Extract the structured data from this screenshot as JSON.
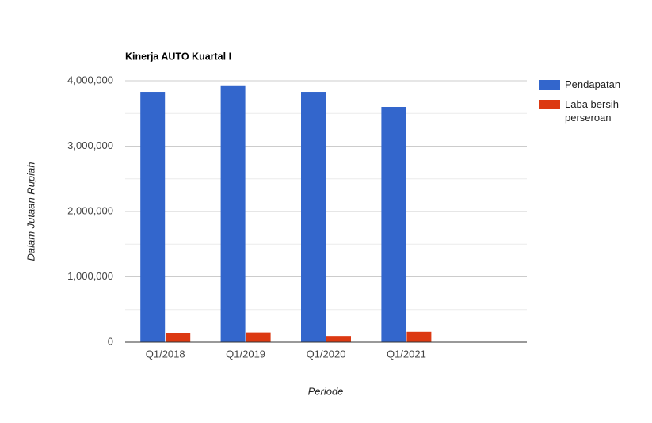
{
  "chart_data": {
    "type": "bar",
    "title": "Kinerja AUTO Kuartal I",
    "x_label": "Periode",
    "y_label": "Dalam Jutaan Rupiah",
    "categories": [
      "Q1/2018",
      "Q1/2019",
      "Q1/2020",
      "Q1/2021",
      null
    ],
    "series": [
      {
        "name": "Pendapatan",
        "color": "#3366cc",
        "values": [
          3830000,
          3930000,
          3830000,
          3600000,
          null
        ]
      },
      {
        "name": "Laba bersih perseroan",
        "color": "#dc3912",
        "values": [
          135000,
          150000,
          95000,
          160000,
          null
        ]
      }
    ],
    "ylim": [
      0,
      4000000
    ],
    "yticks": [
      0,
      {
        "value": 1000000,
        "label": "1,000,000"
      },
      {
        "value": 2000000,
        "label": "2,000,000"
      },
      {
        "value": 3000000,
        "label": "3,000,000"
      },
      {
        "value": 4000000,
        "label": "4,000,000"
      }
    ],
    "minor_yticks": [
      500000,
      1500000,
      2500000,
      3500000
    ],
    "grid": true,
    "legend": "right"
  }
}
